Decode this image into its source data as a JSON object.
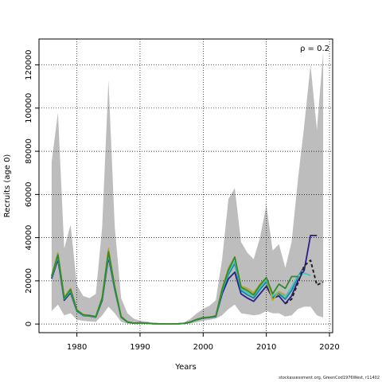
{
  "chart_data": {
    "type": "line",
    "title": "",
    "xlabel": "Years",
    "ylabel": "Recruits (age 0)",
    "annotation": "ρ = 0.2",
    "xlim": [
      1974,
      2020.5
    ],
    "ylim": [
      -4000,
      132000
    ],
    "x_ticks": [
      1980,
      1990,
      2000,
      2010,
      2020
    ],
    "y_ticks": [
      0,
      20000,
      40000,
      60000,
      80000,
      100000,
      120000
    ],
    "grid": true,
    "band": {
      "x": [
        1976,
        1977,
        1978,
        1979,
        1980,
        1981,
        1982,
        1983,
        1984,
        1985,
        1986,
        1987,
        1988,
        1989,
        1990,
        1991,
        1992,
        1993,
        1994,
        1995,
        1996,
        1997,
        1998,
        1999,
        2000,
        2001,
        2002,
        2003,
        2004,
        2005,
        2006,
        2007,
        2008,
        2009,
        2010,
        2011,
        2012,
        2013,
        2014,
        2015,
        2016,
        2017,
        2018,
        2019
      ],
      "lower": [
        6000,
        9000,
        4000,
        5000,
        2000,
        1500,
        1200,
        1000,
        4000,
        8000,
        5000,
        1000,
        200,
        100,
        100,
        50,
        20,
        10,
        10,
        10,
        10,
        50,
        300,
        800,
        1500,
        2000,
        2500,
        4000,
        7000,
        9000,
        5000,
        4500,
        4000,
        4500,
        6000,
        5000,
        5000,
        3500,
        4000,
        7000,
        8000,
        8000,
        4000,
        3000
      ],
      "upper": [
        75000,
        98000,
        35000,
        46000,
        18000,
        13000,
        12000,
        14000,
        45000,
        113000,
        45000,
        12000,
        5000,
        2500,
        1500,
        1200,
        600,
        300,
        200,
        200,
        300,
        800,
        2500,
        5000,
        7000,
        8500,
        11000,
        30000,
        58000,
        63000,
        38000,
        33000,
        30000,
        40000,
        55000,
        34000,
        37000,
        26000,
        38000,
        67000,
        92000,
        120000,
        90000,
        126000
      ]
    },
    "series": [
      {
        "color": "#2b1f86",
        "dashed": false,
        "x": [
          1976,
          1977,
          1978,
          1979,
          1980,
          1981,
          1982,
          1983,
          1984,
          1985,
          1986,
          1987,
          1988,
          1989,
          1990,
          1991,
          1992,
          1993,
          1994,
          1995,
          1996,
          1997,
          1998,
          1999,
          2000,
          2001,
          2002,
          2003,
          2004,
          2005,
          2006,
          2007,
          2008,
          2009,
          2010,
          2011,
          2012,
          2013,
          2014,
          2015,
          2016,
          2017,
          2018,
          2019
        ],
        "values": [
          21000,
          30000,
          11000,
          14500,
          6000,
          4000,
          3700,
          3200,
          11000,
          31000,
          16000,
          3200,
          900,
          400,
          500,
          350,
          150,
          80,
          60,
          60,
          90,
          250,
          900,
          2000,
          2800,
          3000,
          3500,
          14000,
          21000,
          24000,
          14000,
          12000,
          10500,
          14000,
          17500,
          12000,
          13000,
          9500,
          13000,
          20000,
          25000,
          41000,
          41000,
          null
        ]
      },
      {
        "color": "#1e7fa6",
        "dashed": false,
        "x": [
          1976,
          1977,
          1978,
          1979,
          1980,
          1981,
          1982,
          1983,
          1984,
          1985,
          1986,
          1987,
          1988,
          1989,
          1990,
          1991,
          1992,
          1993,
          1994,
          1995,
          1996,
          1997,
          1998,
          1999,
          2000,
          2001,
          2002,
          2003,
          2004,
          2005,
          2006,
          2007,
          2008,
          2009,
          2010,
          2011,
          2012,
          2013,
          2014,
          2015,
          2016
        ],
        "values": [
          21500,
          31000,
          11500,
          15000,
          6200,
          4100,
          3800,
          3300,
          11500,
          32000,
          16500,
          3300,
          950,
          420,
          520,
          360,
          160,
          85,
          65,
          65,
          95,
          260,
          950,
          2100,
          2900,
          3100,
          3600,
          15000,
          23000,
          28000,
          15500,
          13500,
          12000,
          16000,
          19500,
          12500,
          14000,
          11500,
          15500,
          22000,
          26500
        ]
      },
      {
        "color": "#40c4c4",
        "dashed": false,
        "x": [
          1976,
          1977,
          1978,
          1979,
          1980,
          1981,
          1982,
          1983,
          1984,
          1985,
          1986,
          1987,
          1988,
          1989,
          1990,
          1991,
          1992,
          1993,
          1994,
          1995,
          1996,
          1997,
          1998,
          1999,
          2000,
          2001,
          2002,
          2003,
          2004,
          2005,
          2006,
          2007,
          2008,
          2009,
          2010,
          2011,
          2012,
          2013,
          2014,
          2015,
          2016,
          2017
        ],
        "values": [
          21800,
          31500,
          11800,
          15500,
          6300,
          4200,
          3900,
          3350,
          11800,
          32500,
          16800,
          3350,
          970,
          430,
          530,
          370,
          165,
          88,
          67,
          67,
          98,
          270,
          980,
          2150,
          2950,
          3150,
          3700,
          15500,
          24000,
          29000,
          16500,
          14500,
          13000,
          17000,
          20500,
          13000,
          15000,
          12500,
          17000,
          22500,
          23500,
          22500
        ]
      },
      {
        "color": "#b8a82a",
        "dashed": false,
        "x": [
          1976,
          1977,
          1978,
          1979,
          1980,
          1981,
          1982,
          1983,
          1984,
          1985,
          1986,
          1987,
          1988,
          1989,
          1990,
          1991,
          1992,
          1993,
          1994,
          1995,
          1996,
          1997,
          1998,
          1999,
          2000,
          2001,
          2002,
          2003,
          2004,
          2005,
          2006,
          2007,
          2008,
          2009,
          2010,
          2011,
          2012,
          2013
        ],
        "values": [
          22500,
          33000,
          12500,
          16500,
          6600,
          4400,
          4000,
          3500,
          12500,
          35000,
          17500,
          3500,
          1000,
          450,
          550,
          380,
          170,
          90,
          70,
          70,
          100,
          280,
          1000,
          2200,
          3000,
          3200,
          3800,
          16500,
          26000,
          31000,
          17500,
          16500,
          14500,
          18500,
          21500,
          11000,
          15000,
          13500
        ]
      },
      {
        "color": "#2e8b2e",
        "dashed": false,
        "x": [
          1976,
          1977,
          1978,
          1979,
          1980,
          1981,
          1982,
          1983,
          1984,
          1985,
          1986,
          1987,
          1988,
          1989,
          1990,
          1991,
          1992,
          1993,
          1994,
          1995,
          1996,
          1997,
          1998,
          1999,
          2000,
          2001,
          2002,
          2003,
          2004,
          2005,
          2006,
          2007,
          2008,
          2009,
          2010,
          2011,
          2012,
          2013,
          2014,
          2015
        ],
        "values": [
          22000,
          32000,
          12000,
          16000,
          6400,
          4300,
          3950,
          3400,
          12000,
          33500,
          17000,
          3400,
          980,
          440,
          540,
          375,
          168,
          89,
          68,
          68,
          99,
          275,
          990,
          2180,
          2980,
          3180,
          3750,
          16000,
          25000,
          31000,
          17000,
          15500,
          13500,
          18000,
          21500,
          14000,
          18500,
          16500,
          22000,
          22000
        ]
      },
      {
        "color": "#222222",
        "dashed": true,
        "x": [
          2013,
          2014,
          2015,
          2016,
          2017,
          2018,
          2019
        ],
        "values": [
          9500,
          11500,
          19000,
          27000,
          29500,
          18000,
          19500
        ]
      }
    ]
  },
  "footer": {
    "text": "stockassessment.org, GreenCod1976West, r11402"
  }
}
